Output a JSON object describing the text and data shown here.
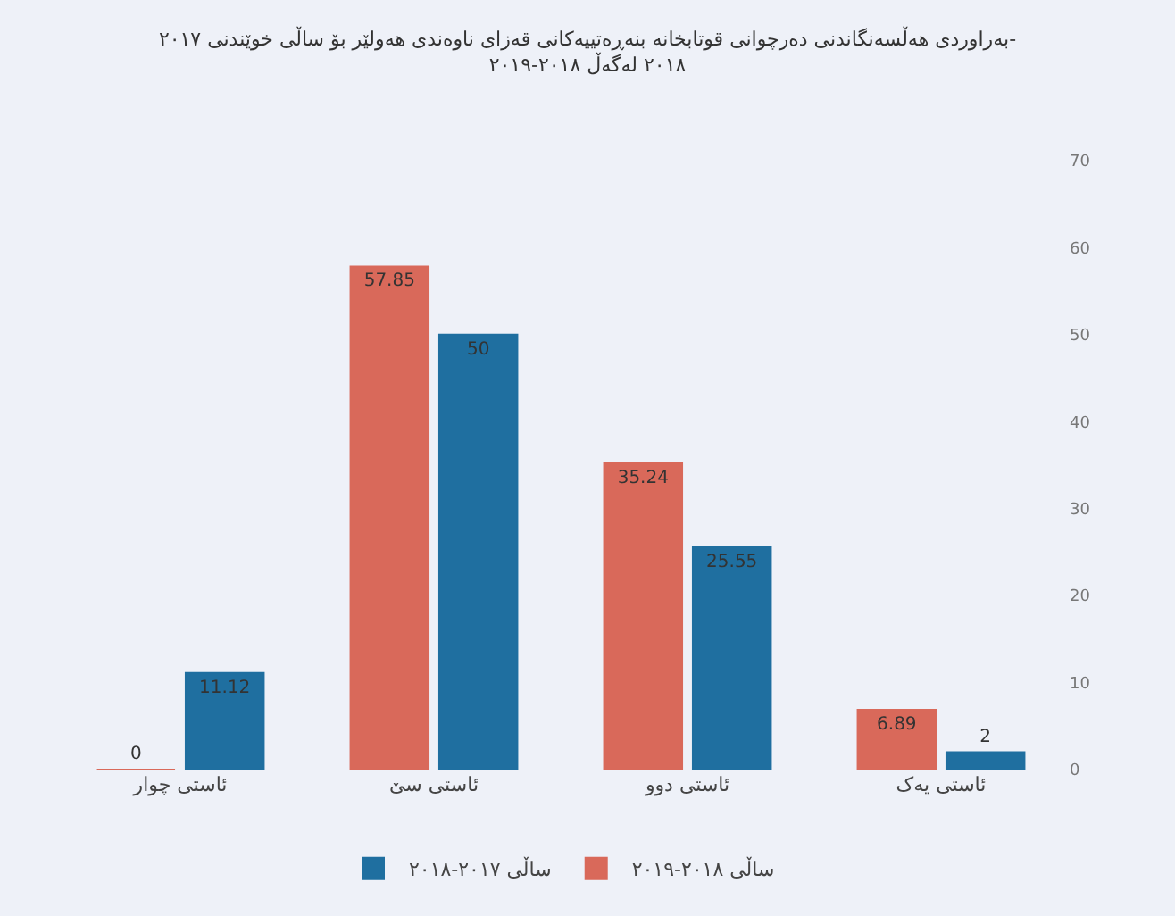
{
  "chart_data": {
    "type": "bar",
    "title": "بەراوردی هەڵسەنگاندنی دەرچوانی قوتابخانە بنەڕەتییەکانی قەزای ناوەندی هەولێر بۆ ساڵی خوێندنی ٢٠١٧-\n٢٠١٨ لەگەڵ ٢٠١٨-٢٠١٩",
    "categories": [
      "ئاستی چوار",
      "ئاستی سێ",
      "ئاستی دوو",
      "ئاستی یەک"
    ],
    "series": [
      {
        "name": "ساڵی ٢٠١٨-٢٠١٩",
        "color": "#d9695a",
        "values": [
          0,
          57.85,
          35.24,
          6.89
        ]
      },
      {
        "name": "ساڵی ٢٠١٧-٢٠١٨",
        "color": "#1f6fa0",
        "values": [
          11.12,
          50,
          25.55,
          2
        ]
      }
    ],
    "ylim": [
      0,
      70
    ],
    "yticks": [
      0,
      10,
      20,
      30,
      40,
      50,
      60,
      70
    ],
    "grid": false,
    "legend": "bottom",
    "data_labels": true
  }
}
